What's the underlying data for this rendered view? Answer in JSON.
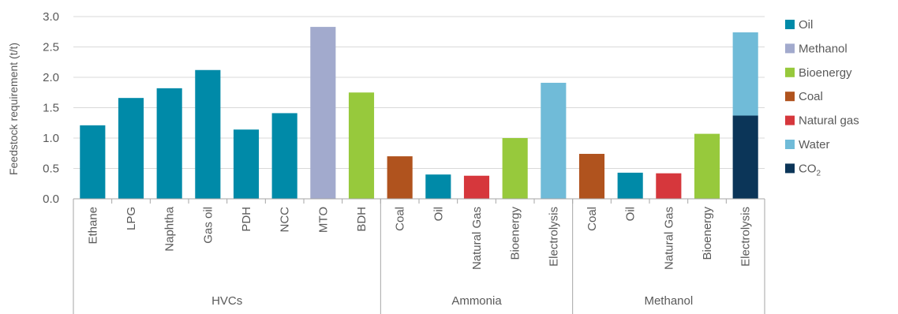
{
  "chart_data": {
    "type": "bar",
    "stacked": true,
    "ylabel": "Feedstock requirement (t/t)",
    "ylim": [
      0,
      3.0
    ],
    "yticks": [
      "0.0",
      "0.5",
      "1.0",
      "1.5",
      "2.0",
      "2.5",
      "3.0"
    ],
    "grid": true,
    "legend_position": "right",
    "groups": [
      {
        "name": "HVCs",
        "bars": [
          {
            "label": "Ethane",
            "segments": [
              {
                "series": "Oil",
                "value": 1.21
              }
            ]
          },
          {
            "label": "LPG",
            "segments": [
              {
                "series": "Oil",
                "value": 1.66
              }
            ]
          },
          {
            "label": "Naphtha",
            "segments": [
              {
                "series": "Oil",
                "value": 1.82
              }
            ]
          },
          {
            "label": "Gas oil",
            "segments": [
              {
                "series": "Oil",
                "value": 2.12
              }
            ]
          },
          {
            "label": "PDH",
            "segments": [
              {
                "series": "Oil",
                "value": 1.14
              }
            ]
          },
          {
            "label": "NCC",
            "segments": [
              {
                "series": "Oil",
                "value": 1.41
              }
            ]
          },
          {
            "label": "MTO",
            "segments": [
              {
                "series": "Methanol",
                "value": 2.83
              }
            ]
          },
          {
            "label": "BDH",
            "segments": [
              {
                "series": "Bioenergy",
                "value": 1.75
              }
            ]
          }
        ]
      },
      {
        "name": "Ammonia",
        "bars": [
          {
            "label": "Coal",
            "segments": [
              {
                "series": "Coal",
                "value": 0.7
              }
            ]
          },
          {
            "label": "Oil",
            "segments": [
              {
                "series": "Oil",
                "value": 0.4
              }
            ]
          },
          {
            "label": "Natural Gas",
            "segments": [
              {
                "series": "Natural gas",
                "value": 0.38
              }
            ]
          },
          {
            "label": "Bioenergy",
            "segments": [
              {
                "series": "Bioenergy",
                "value": 1.0
              }
            ]
          },
          {
            "label": "Electrolysis",
            "segments": [
              {
                "series": "Water",
                "value": 1.91
              }
            ]
          }
        ]
      },
      {
        "name": "Methanol",
        "bars": [
          {
            "label": "Coal",
            "segments": [
              {
                "series": "Coal",
                "value": 0.74
              }
            ]
          },
          {
            "label": "Oil",
            "segments": [
              {
                "series": "Oil",
                "value": 0.43
              }
            ]
          },
          {
            "label": "Natural Gas",
            "segments": [
              {
                "series": "Natural gas",
                "value": 0.42
              }
            ]
          },
          {
            "label": "Bioenergy",
            "segments": [
              {
                "series": "Bioenergy",
                "value": 1.07
              }
            ]
          },
          {
            "label": "Electrolysis",
            "segments": [
              {
                "series": "CO2",
                "value": 1.37
              },
              {
                "series": "Water",
                "value": 1.37
              }
            ]
          }
        ]
      }
    ],
    "series": [
      {
        "key": "Oil",
        "name": "Oil",
        "color": "#008aa8"
      },
      {
        "key": "Methanol",
        "name": "Methanol",
        "color": "#a2aacd"
      },
      {
        "key": "Bioenergy",
        "name": "Bioenergy",
        "color": "#97c93c"
      },
      {
        "key": "Coal",
        "name": "Coal",
        "color": "#b0531e"
      },
      {
        "key": "Natural gas",
        "name": "Natural gas",
        "color": "#d6373c"
      },
      {
        "key": "Water",
        "name": "Water",
        "color": "#70bbd8"
      },
      {
        "key": "CO2",
        "name": "CO",
        "sub": "2",
        "color": "#0b3558"
      }
    ]
  }
}
